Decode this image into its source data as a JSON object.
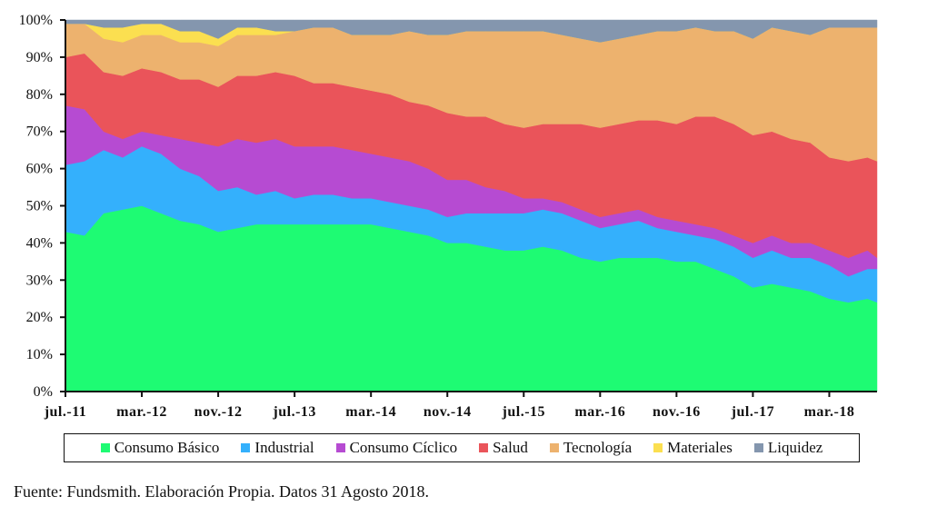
{
  "chart_data": {
    "type": "area",
    "stacked": true,
    "normalized": true,
    "title": "",
    "xlabel": "",
    "ylabel": "",
    "ylim": [
      0,
      100
    ],
    "y_ticks": [
      "0%",
      "10%",
      "20%",
      "30%",
      "40%",
      "50%",
      "60%",
      "70%",
      "80%",
      "90%",
      "100%"
    ],
    "x_ticks": [
      {
        "label": "jul.-11",
        "month_index": 0
      },
      {
        "label": "mar.-12",
        "month_index": 8
      },
      {
        "label": "nov.-12",
        "month_index": 16
      },
      {
        "label": "jul.-13",
        "month_index": 24
      },
      {
        "label": "mar.-14",
        "month_index": 32
      },
      {
        "label": "nov.-14",
        "month_index": 40
      },
      {
        "label": "jul.-15",
        "month_index": 48
      },
      {
        "label": "mar.-16",
        "month_index": 56
      },
      {
        "label": "nov.-16",
        "month_index": 64
      },
      {
        "label": "jul.-17",
        "month_index": 72
      },
      {
        "label": "mar.-18",
        "month_index": 80
      }
    ],
    "x_month_range": [
      0,
      85
    ],
    "x": [
      0,
      2,
      4,
      6,
      8,
      10,
      12,
      14,
      16,
      18,
      20,
      22,
      24,
      26,
      28,
      30,
      32,
      34,
      36,
      38,
      40,
      42,
      44,
      46,
      48,
      50,
      52,
      54,
      56,
      58,
      60,
      62,
      64,
      66,
      68,
      70,
      72,
      74,
      76,
      78,
      80,
      82,
      84,
      85
    ],
    "series": [
      {
        "name": "Consumo Básico",
        "color": "#1EFB73",
        "values": [
          43,
          42,
          48,
          49,
          50,
          48,
          46,
          45,
          43,
          44,
          45,
          45,
          45,
          45,
          45,
          45,
          45,
          44,
          43,
          42,
          40,
          40,
          39,
          38,
          38,
          39,
          38,
          36,
          35,
          36,
          36,
          36,
          35,
          35,
          33,
          31,
          28,
          29,
          28,
          27,
          25,
          24,
          25,
          24
        ]
      },
      {
        "name": "Industrial",
        "color": "#34B0FC",
        "values": [
          18,
          20,
          17,
          14,
          16,
          16,
          14,
          13,
          11,
          11,
          8,
          9,
          7,
          8,
          8,
          7,
          7,
          7,
          7,
          7,
          7,
          8,
          9,
          10,
          10,
          10,
          10,
          10,
          9,
          9,
          10,
          8,
          8,
          7,
          8,
          8,
          8,
          9,
          8,
          9,
          9,
          7,
          8,
          9
        ]
      },
      {
        "name": "Consumo Cíclico",
        "color": "#B64BD2",
        "values": [
          16,
          14,
          5,
          5,
          4,
          5,
          8,
          9,
          12,
          13,
          14,
          14,
          14,
          13,
          13,
          13,
          12,
          12,
          12,
          11,
          10,
          9,
          7,
          6,
          4,
          3,
          3,
          3,
          3,
          3,
          3,
          3,
          3,
          3,
          3,
          3,
          4,
          4,
          4,
          4,
          4,
          5,
          5,
          3
        ]
      },
      {
        "name": "Salud",
        "color": "#EA545A",
        "values": [
          13,
          15,
          16,
          17,
          17,
          17,
          16,
          17,
          16,
          17,
          18,
          18,
          19,
          17,
          17,
          17,
          17,
          17,
          16,
          17,
          18,
          17,
          19,
          18,
          19,
          20,
          21,
          23,
          24,
          24,
          24,
          26,
          26,
          29,
          30,
          30,
          29,
          28,
          28,
          27,
          25,
          26,
          25,
          26
        ]
      },
      {
        "name": "Tecnología",
        "color": "#EDB26E",
        "values": [
          9,
          8,
          9,
          9,
          9,
          10,
          10,
          10,
          11,
          11,
          11,
          10,
          12,
          15,
          15,
          14,
          15,
          16,
          19,
          19,
          21,
          23,
          23,
          25,
          26,
          25,
          24,
          23,
          23,
          23,
          23,
          24,
          25,
          24,
          23,
          25,
          26,
          28,
          29,
          29,
          35,
          36,
          35,
          36
        ]
      },
      {
        "name": "Materiales",
        "color": "#FBDF50",
        "values": [
          0,
          0,
          3,
          4,
          3,
          3,
          3,
          3,
          2,
          2,
          2,
          1,
          0,
          0,
          0,
          0,
          0,
          0,
          0,
          0,
          0,
          0,
          0,
          0,
          0,
          0,
          0,
          0,
          0,
          0,
          0,
          0,
          0,
          0,
          0,
          0,
          0,
          0,
          0,
          0,
          0,
          0,
          0,
          0
        ]
      },
      {
        "name": "Liquidez",
        "color": "#8496AE",
        "values": [
          1,
          1,
          2,
          2,
          1,
          1,
          3,
          3,
          5,
          2,
          2,
          3,
          3,
          2,
          2,
          4,
          4,
          4,
          3,
          4,
          4,
          3,
          3,
          3,
          3,
          3,
          4,
          5,
          6,
          5,
          4,
          3,
          3,
          2,
          3,
          3,
          5,
          2,
          3,
          4,
          2,
          2,
          2,
          2
        ]
      }
    ],
    "legend_position": "bottom",
    "grid": false
  },
  "caption": "Fuente: Fundsmith. Elaboración Propia. Datos 31 Agosto 2018."
}
